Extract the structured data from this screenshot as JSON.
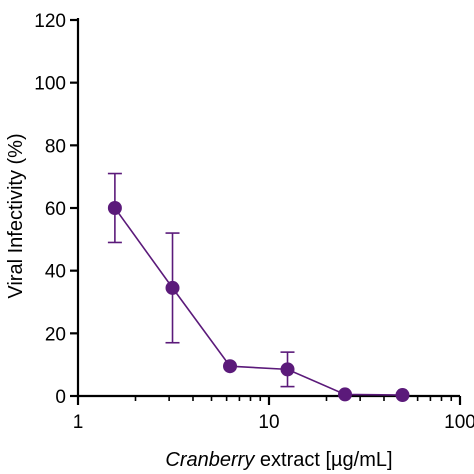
{
  "chart_data": {
    "type": "scatter",
    "xlabel_italic": "Cranberry",
    "xlabel_rest": " extract [µg/mL]",
    "ylabel": "Viral Infectivity (%)",
    "x_scale": "log",
    "xlim": [
      1,
      100
    ],
    "ylim": [
      0,
      120
    ],
    "x_ticks": [
      1,
      10,
      100
    ],
    "x_tick_labels": [
      "1",
      "10",
      "100"
    ],
    "y_ticks": [
      0,
      20,
      40,
      60,
      80,
      100,
      120
    ],
    "y_tick_labels": [
      "0",
      "20",
      "40",
      "60",
      "80",
      "100",
      "120"
    ],
    "grid": false,
    "series": [
      {
        "color": "#5b1a7a",
        "line": true,
        "x": [
          1.56,
          3.125,
          6.25,
          12.5,
          25,
          50
        ],
        "y": [
          60,
          34.5,
          9.5,
          8.5,
          0.5,
          0.3
        ],
        "err": [
          11,
          17.5,
          0,
          5.5,
          0,
          0
        ]
      }
    ]
  }
}
